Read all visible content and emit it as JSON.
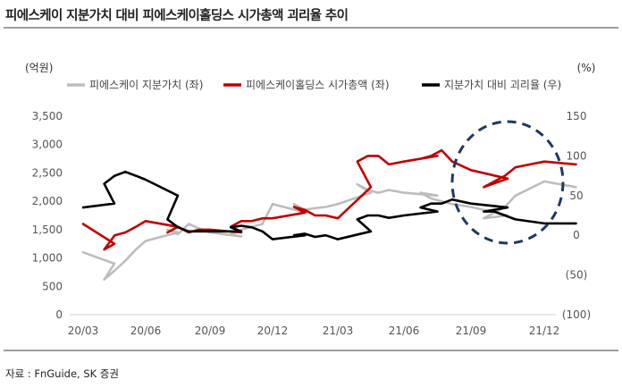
{
  "title": "피에스케이 지분가치 대비 피에스케이홀딩스 시가총액 괴리율 추이",
  "source": "자료 : FnGuide, SK 증권",
  "colors": {
    "book_value": "#bdbdbd",
    "market_cap": "#c00000",
    "gap": "#000000",
    "highlight": "#1f3864"
  },
  "chart_data": {
    "type": "line",
    "title": "피에스케이 지분가치 대비 피에스케이홀딩스 시가총액 괴리율 추이",
    "y_left_unit": "(억원)",
    "y_right_unit": "(%)",
    "ylim_left": [
      0,
      3500
    ],
    "ylim_right": [
      -100,
      150
    ],
    "yticks_left": [
      "0",
      "500",
      "1,000",
      "1,500",
      "2,000",
      "2,500",
      "3,000",
      "3,500"
    ],
    "yticks_right": [
      "(100)",
      "(50)",
      "0",
      "50",
      "100",
      "150"
    ],
    "x_ticks": [
      "20/03",
      "20/06",
      "20/09",
      "20/12",
      "21/03",
      "21/06",
      "21/09",
      "21/12"
    ],
    "legend_position": "top",
    "grid": false,
    "series": [
      {
        "name": "피에스케이 지분가치 (좌)",
        "axis": "left",
        "color": "#bdbdbd",
        "points": [
          [
            "20/03",
            1100
          ],
          [
            "20/03.5",
            900
          ],
          [
            "20/04",
            620
          ],
          [
            "20/04.5",
            780
          ],
          [
            "20/05",
            950
          ],
          [
            "20/05.5",
            1150
          ],
          [
            "20/06",
            1300
          ],
          [
            "20/06.5",
            1450
          ],
          [
            "20/07",
            1500
          ],
          [
            "20/07.5",
            1420
          ],
          [
            "20/08",
            1600
          ],
          [
            "20/08.5",
            1520
          ],
          [
            "20/09",
            1450
          ],
          [
            "20/09.5",
            1380
          ],
          [
            "20/10",
            1420
          ],
          [
            "20/10.5",
            1500
          ],
          [
            "20/11",
            1550
          ],
          [
            "20/11.5",
            1600
          ],
          [
            "20/12",
            1950
          ],
          [
            "20/12.5",
            1800
          ],
          [
            "21/01",
            1950
          ],
          [
            "21/01.5",
            1850
          ],
          [
            "21/02",
            1880
          ],
          [
            "21/02.5",
            1900
          ],
          [
            "21/03",
            1950
          ],
          [
            "21/03.5",
            2150
          ],
          [
            "21/04",
            2300
          ],
          [
            "21/04.5",
            2200
          ],
          [
            "21/05",
            2150
          ],
          [
            "21/05.5",
            2200
          ],
          [
            "21/06",
            2150
          ],
          [
            "21/06.5",
            2100
          ],
          [
            "21/07",
            2150
          ],
          [
            "21/07.5",
            2050
          ],
          [
            "21/08",
            2000
          ],
          [
            "21/08.5",
            1950
          ],
          [
            "21/09",
            1900
          ],
          [
            "21/09.5",
            1750
          ],
          [
            "21/10",
            1700
          ],
          [
            "21/10.5",
            1800
          ],
          [
            "21/11",
            1900
          ],
          [
            "21/11.5",
            2100
          ],
          [
            "21/12",
            2350
          ],
          [
            "21/12.5",
            2250
          ]
        ]
      },
      {
        "name": "피에스케이홀딩스 시가총액 (좌)",
        "axis": "left",
        "color": "#c00000",
        "points": [
          [
            "20/03",
            1600
          ],
          [
            "20/03.5",
            1250
          ],
          [
            "20/04",
            1150
          ],
          [
            "20/04.5",
            1400
          ],
          [
            "20/05",
            1450
          ],
          [
            "20/05.5",
            1550
          ],
          [
            "20/06",
            1650
          ],
          [
            "20/06.5",
            1550
          ],
          [
            "20/07",
            1450
          ],
          [
            "20/07.5",
            1550
          ],
          [
            "20/08",
            1450
          ],
          [
            "20/08.5",
            1500
          ],
          [
            "20/09",
            1500
          ],
          [
            "20/09.5",
            1450
          ],
          [
            "20/10",
            1550
          ],
          [
            "20/10.5",
            1650
          ],
          [
            "20/11",
            1650
          ],
          [
            "20/11.5",
            1700
          ],
          [
            "20/12",
            1700
          ],
          [
            "20/12.5",
            1800
          ],
          [
            "21/01",
            1900
          ],
          [
            "21/01.5",
            1850
          ],
          [
            "21/02",
            1750
          ],
          [
            "21/02.5",
            1750
          ],
          [
            "21/03",
            1700
          ],
          [
            "21/03.5",
            2250
          ],
          [
            "21/04",
            2700
          ],
          [
            "21/04.5",
            2800
          ],
          [
            "21/05",
            2800
          ],
          [
            "21/05.5",
            2650
          ],
          [
            "21/06",
            2700
          ],
          [
            "21/06.5",
            2800
          ],
          [
            "21/07",
            2750
          ],
          [
            "21/07.5",
            2800
          ],
          [
            "21/08",
            2900
          ],
          [
            "21/08.5",
            2700
          ],
          [
            "21/09",
            2550
          ],
          [
            "21/09.5",
            2400
          ],
          [
            "21/10",
            2250
          ],
          [
            "21/10.5",
            2350
          ],
          [
            "21/11",
            2450
          ],
          [
            "21/11.5",
            2600
          ],
          [
            "21/12",
            2700
          ],
          [
            "21/12.5",
            2650
          ]
        ]
      },
      {
        "name": "지분가치 대비 괴리율 (우)",
        "axis": "right",
        "color": "#000000",
        "points": [
          [
            "20/03",
            35
          ],
          [
            "20/03.5",
            40
          ],
          [
            "20/04",
            65
          ],
          [
            "20/04.5",
            75
          ],
          [
            "20/05",
            80
          ],
          [
            "20/05.5",
            75
          ],
          [
            "20/06",
            70
          ],
          [
            "20/06.5",
            50
          ],
          [
            "20/07",
            20
          ],
          [
            "20/07.5",
            10
          ],
          [
            "20/08",
            5
          ],
          [
            "20/08.5",
            5
          ],
          [
            "20/09",
            5
          ],
          [
            "20/09.5",
            5
          ],
          [
            "20/10",
            10
          ],
          [
            "20/10.5",
            12
          ],
          [
            "20/11",
            10
          ],
          [
            "20/11.5",
            5
          ],
          [
            "20/12",
            -5
          ],
          [
            "20/12.5",
            0
          ],
          [
            "21/01",
            0
          ],
          [
            "21/01.5",
            2
          ],
          [
            "21/02",
            -2
          ],
          [
            "21/02.5",
            0
          ],
          [
            "21/03",
            -5
          ],
          [
            "21/03.5",
            5
          ],
          [
            "21/04",
            20
          ],
          [
            "21/04.5",
            25
          ],
          [
            "21/05",
            25
          ],
          [
            "21/05.5",
            22
          ],
          [
            "21/06",
            25
          ],
          [
            "21/06.5",
            30
          ],
          [
            "21/07",
            35
          ],
          [
            "21/07.5",
            40
          ],
          [
            "21/08",
            40
          ],
          [
            "21/08.5",
            45
          ],
          [
            "21/09",
            40
          ],
          [
            "21/09.5",
            35
          ],
          [
            "21/10",
            30
          ],
          [
            "21/10.5",
            30
          ],
          [
            "21/11",
            25
          ],
          [
            "21/11.5",
            20
          ],
          [
            "21/12",
            15
          ],
          [
            "21/12.5",
            15
          ]
        ]
      }
    ],
    "annotation": "dashed-ellipse-highlight"
  }
}
